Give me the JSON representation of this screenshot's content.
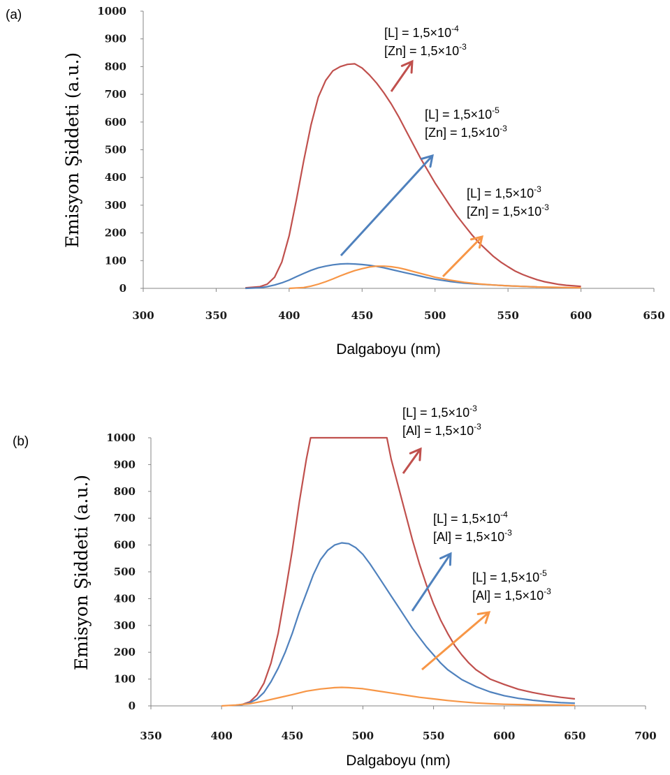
{
  "colors": {
    "red": "#c0504d",
    "blue": "#4f81bd",
    "orange": "#f79646",
    "axis": "#868686"
  },
  "chart_data": [
    {
      "panel_label": "(a)",
      "type": "line",
      "xlabel": "Dalgaboyu (nm)",
      "ylabel": "Emisyon Şiddeti (a.u.)",
      "xlim": [
        300,
        650
      ],
      "ylim": [
        0,
        1000
      ],
      "xticks": [
        "300",
        "350",
        "400",
        "450",
        "500",
        "550",
        "600",
        "650"
      ],
      "yticks": [
        "0",
        "100",
        "200",
        "300",
        "400",
        "500",
        "600",
        "700",
        "800",
        "900",
        "1000"
      ],
      "grid": false,
      "series": [
        {
          "color": "red",
          "points": [
            [
              370,
              2
            ],
            [
              380,
              6
            ],
            [
              385,
              15
            ],
            [
              390,
              40
            ],
            [
              395,
              95
            ],
            [
              400,
              190
            ],
            [
              405,
              320
            ],
            [
              410,
              460
            ],
            [
              415,
              590
            ],
            [
              420,
              690
            ],
            [
              425,
              750
            ],
            [
              430,
              785
            ],
            [
              435,
              800
            ],
            [
              440,
              808
            ],
            [
              445,
              810
            ],
            [
              450,
              795
            ],
            [
              455,
              770
            ],
            [
              460,
              740
            ],
            [
              465,
              705
            ],
            [
              470,
              665
            ],
            [
              475,
              620
            ],
            [
              480,
              570
            ],
            [
              485,
              520
            ],
            [
              490,
              470
            ],
            [
              495,
              425
            ],
            [
              500,
              380
            ],
            [
              505,
              340
            ],
            [
              510,
              300
            ],
            [
              515,
              262
            ],
            [
              520,
              228
            ],
            [
              525,
              195
            ],
            [
              530,
              165
            ],
            [
              535,
              140
            ],
            [
              540,
              115
            ],
            [
              545,
              95
            ],
            [
              550,
              78
            ],
            [
              555,
              62
            ],
            [
              560,
              50
            ],
            [
              565,
              40
            ],
            [
              570,
              31
            ],
            [
              575,
              24
            ],
            [
              580,
              19
            ],
            [
              585,
              14
            ],
            [
              590,
              11
            ],
            [
              595,
              9
            ],
            [
              600,
              7
            ]
          ]
        },
        {
          "color": "blue",
          "points": [
            [
              370,
              0
            ],
            [
              380,
              2
            ],
            [
              385,
              6
            ],
            [
              390,
              12
            ],
            [
              395,
              20
            ],
            [
              400,
              30
            ],
            [
              405,
              42
            ],
            [
              410,
              54
            ],
            [
              415,
              65
            ],
            [
              420,
              74
            ],
            [
              425,
              80
            ],
            [
              430,
              85
            ],
            [
              435,
              88
            ],
            [
              440,
              89
            ],
            [
              445,
              88
            ],
            [
              450,
              86
            ],
            [
              455,
              83
            ],
            [
              460,
              79
            ],
            [
              465,
              74
            ],
            [
              470,
              68
            ],
            [
              475,
              62
            ],
            [
              480,
              56
            ],
            [
              485,
              50
            ],
            [
              490,
              44
            ],
            [
              495,
              38
            ],
            [
              500,
              33
            ],
            [
              510,
              25
            ],
            [
              520,
              19
            ],
            [
              530,
              15
            ],
            [
              540,
              12
            ],
            [
              550,
              9
            ],
            [
              560,
              7
            ],
            [
              570,
              5
            ]
          ]
        },
        {
          "color": "orange",
          "points": [
            [
              400,
              0
            ],
            [
              410,
              3
            ],
            [
              415,
              8
            ],
            [
              420,
              15
            ],
            [
              425,
              24
            ],
            [
              430,
              34
            ],
            [
              435,
              45
            ],
            [
              440,
              55
            ],
            [
              445,
              64
            ],
            [
              450,
              71
            ],
            [
              455,
              77
            ],
            [
              460,
              80
            ],
            [
              465,
              80
            ],
            [
              470,
              78
            ],
            [
              475,
              74
            ],
            [
              480,
              68
            ],
            [
              485,
              61
            ],
            [
              490,
              54
            ],
            [
              495,
              47
            ],
            [
              500,
              40
            ],
            [
              510,
              30
            ],
            [
              520,
              22
            ],
            [
              530,
              16
            ],
            [
              540,
              12
            ],
            [
              550,
              9
            ],
            [
              560,
              7
            ],
            [
              570,
              5
            ],
            [
              580,
              4
            ],
            [
              590,
              3
            ],
            [
              600,
              2
            ]
          ]
        }
      ],
      "annotations": [
        {
          "line1": "[L]   = 1,5×10",
          "exp1": "-4",
          "line2": "[Zn] = 1,5×10",
          "exp2": "-3",
          "arrow_color": "red"
        },
        {
          "line1": "[L]   = 1,5×10",
          "exp1": "-5",
          "line2": "[Zn] = 1,5×10",
          "exp2": "-3",
          "arrow_color": "blue"
        },
        {
          "line1": "[L]   = 1,5×10",
          "exp1": "-3",
          "line2": "[Zn] = 1,5×10",
          "exp2": "-3",
          "arrow_color": "orange"
        }
      ]
    },
    {
      "panel_label": "(b)",
      "type": "line",
      "xlabel": "Dalgaboyu (nm)",
      "ylabel": "Emisyon Şiddeti (a.u.)",
      "xlim": [
        350,
        700
      ],
      "ylim": [
        0,
        1000
      ],
      "xticks": [
        "350",
        "400",
        "450",
        "500",
        "550",
        "600",
        "650",
        "700"
      ],
      "yticks": [
        "0",
        "100",
        "200",
        "300",
        "400",
        "500",
        "600",
        "700",
        "800",
        "900",
        "1000"
      ],
      "grid": false,
      "series": [
        {
          "color": "red",
          "points": [
            [
              410,
              2
            ],
            [
              415,
              6
            ],
            [
              420,
              15
            ],
            [
              425,
              40
            ],
            [
              430,
              85
            ],
            [
              435,
              160
            ],
            [
              440,
              270
            ],
            [
              445,
              420
            ],
            [
              450,
              580
            ],
            [
              455,
              760
            ],
            [
              460,
              920
            ],
            [
              463,
              1000
            ],
            [
              470,
              1000
            ],
            [
              480,
              1000
            ],
            [
              490,
              1000
            ],
            [
              500,
              1000
            ],
            [
              510,
              1000
            ],
            [
              517,
              1000
            ],
            [
              520,
              920
            ],
            [
              525,
              820
            ],
            [
              530,
              720
            ],
            [
              535,
              620
            ],
            [
              540,
              530
            ],
            [
              545,
              450
            ],
            [
              550,
              380
            ],
            [
              555,
              320
            ],
            [
              560,
              270
            ],
            [
              565,
              225
            ],
            [
              570,
              190
            ],
            [
              575,
              160
            ],
            [
              580,
              135
            ],
            [
              590,
              100
            ],
            [
              600,
              80
            ],
            [
              610,
              62
            ],
            [
              620,
              50
            ],
            [
              630,
              40
            ],
            [
              640,
              32
            ],
            [
              650,
              26
            ]
          ]
        },
        {
          "color": "blue",
          "points": [
            [
              410,
              2
            ],
            [
              415,
              5
            ],
            [
              420,
              12
            ],
            [
              425,
              25
            ],
            [
              430,
              50
            ],
            [
              435,
              90
            ],
            [
              440,
              140
            ],
            [
              445,
              200
            ],
            [
              450,
              270
            ],
            [
              455,
              350
            ],
            [
              460,
              420
            ],
            [
              465,
              490
            ],
            [
              470,
              545
            ],
            [
              475,
              580
            ],
            [
              480,
              600
            ],
            [
              485,
              608
            ],
            [
              490,
              605
            ],
            [
              495,
              590
            ],
            [
              500,
              565
            ],
            [
              505,
              530
            ],
            [
              510,
              490
            ],
            [
              515,
              450
            ],
            [
              520,
              410
            ],
            [
              525,
              370
            ],
            [
              530,
              330
            ],
            [
              535,
              290
            ],
            [
              540,
              255
            ],
            [
              545,
              220
            ],
            [
              550,
              190
            ],
            [
              555,
              160
            ],
            [
              560,
              135
            ],
            [
              570,
              98
            ],
            [
              580,
              72
            ],
            [
              590,
              52
            ],
            [
              600,
              38
            ],
            [
              610,
              28
            ],
            [
              620,
              21
            ],
            [
              630,
              16
            ],
            [
              640,
              12
            ],
            [
              650,
              10
            ]
          ]
        },
        {
          "color": "orange",
          "points": [
            [
              400,
              0
            ],
            [
              410,
              3
            ],
            [
              420,
              8
            ],
            [
              430,
              18
            ],
            [
              440,
              30
            ],
            [
              450,
              42
            ],
            [
              460,
              55
            ],
            [
              470,
              63
            ],
            [
              480,
              68
            ],
            [
              485,
              69
            ],
            [
              490,
              68
            ],
            [
              500,
              64
            ],
            [
              510,
              56
            ],
            [
              520,
              48
            ],
            [
              530,
              40
            ],
            [
              540,
              32
            ],
            [
              550,
              26
            ],
            [
              560,
              20
            ],
            [
              570,
              15
            ],
            [
              580,
              11
            ],
            [
              590,
              8
            ],
            [
              600,
              6
            ],
            [
              620,
              4
            ],
            [
              640,
              3
            ],
            [
              650,
              2
            ]
          ]
        }
      ],
      "annotations": [
        {
          "line1": "[L]   = 1,5×10",
          "exp1": "-3",
          "line2": "[Al]  = 1,5×10",
          "exp2": "-3",
          "arrow_color": "red"
        },
        {
          "line1": "[L]   = 1,5×10",
          "exp1": "-4",
          "line2": "[Al]  = 1,5×10",
          "exp2": "-3",
          "arrow_color": "blue"
        },
        {
          "line1": "[L]   = 1,5×10",
          "exp1": "-5",
          "line2": "[Al]  = 1,5×10",
          "exp2": "-3",
          "arrow_color": "orange"
        }
      ]
    }
  ]
}
